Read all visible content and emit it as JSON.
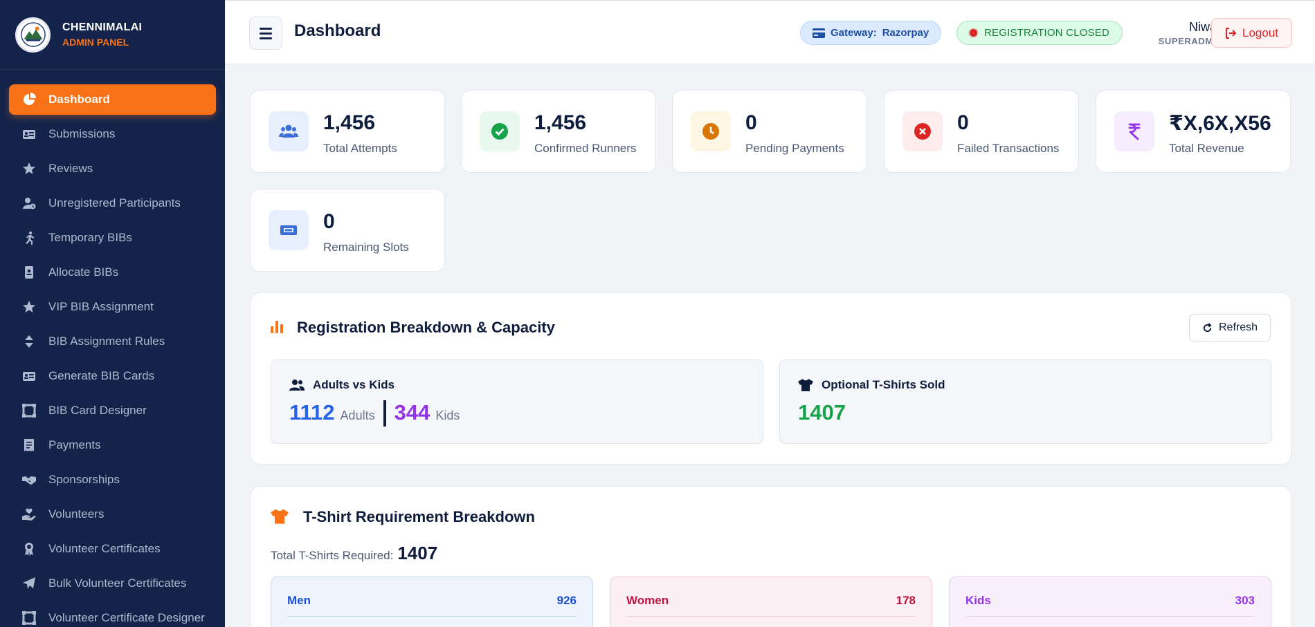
{
  "brand": {
    "title": "CHENNIMALAI",
    "subtitle": "ADMIN PANEL"
  },
  "sidebar": {
    "items": [
      {
        "label": "Dashboard",
        "icon": "pie-chart-icon",
        "active": true
      },
      {
        "label": "Submissions",
        "icon": "id-card-icon"
      },
      {
        "label": "Reviews",
        "icon": "star-icon"
      },
      {
        "label": "Unregistered Participants",
        "icon": "user-clock-icon"
      },
      {
        "label": "Temporary BIBs",
        "icon": "running-icon"
      },
      {
        "label": "Allocate BIBs",
        "icon": "id-badge-icon"
      },
      {
        "label": "VIP BIB Assignment",
        "icon": "star-icon"
      },
      {
        "label": "BIB Assignment Rules",
        "icon": "sort-icon"
      },
      {
        "label": "Generate BIB Cards",
        "icon": "id-card-icon"
      },
      {
        "label": "BIB Card Designer",
        "icon": "crop-icon"
      },
      {
        "label": "Payments",
        "icon": "receipt-icon"
      },
      {
        "label": "Sponsorships",
        "icon": "handshake-icon"
      },
      {
        "label": "Volunteers",
        "icon": "hand-holding-heart-icon"
      },
      {
        "label": "Volunteer Certificates",
        "icon": "award-icon"
      },
      {
        "label": "Bulk Volunteer Certificates",
        "icon": "paper-plane-icon"
      },
      {
        "label": "Volunteer Certificate Designer",
        "icon": "crop-icon"
      }
    ]
  },
  "header": {
    "title": "Dashboard",
    "gateway_label": "Gateway:",
    "gateway_value": "Razorpay",
    "registration_status": "REGISTRATION CLOSED",
    "user_name": "Niwas",
    "user_role": "SUPERADMIN",
    "logout_label": "Logout"
  },
  "stats": [
    {
      "value": "1,456",
      "label": "Total Attempts",
      "icon": "users-icon",
      "color": "#3b6fd8",
      "bg": "#e8effc"
    },
    {
      "value": "1,456",
      "label": "Confirmed Runners",
      "icon": "check-circle-icon",
      "color": "#16a34a",
      "bg": "#e8f8ee"
    },
    {
      "value": "0",
      "label": "Pending Payments",
      "icon": "clock-icon",
      "color": "#d97706",
      "bg": "#fdf6e3"
    },
    {
      "value": "0",
      "label": "Failed Transactions",
      "icon": "times-circle-icon",
      "color": "#dc2626",
      "bg": "#fdecec"
    },
    {
      "value": "₹X,6X,X56",
      "label": "Total Revenue",
      "icon": "rupee-icon",
      "color": "#9333ea",
      "bg": "#f5ecfd"
    },
    {
      "value": "0",
      "label": "Remaining Slots",
      "icon": "ticket-icon",
      "color": "#3b6fd8",
      "bg": "#e8effc"
    }
  ],
  "breakdown": {
    "title": "Registration Breakdown & Capacity",
    "refresh_label": "Refresh",
    "adults_kids_title": "Adults vs Kids",
    "adults_value": "1112",
    "adults_label": "Adults",
    "kids_value": "344",
    "kids_label": "Kids",
    "tshirts_title": "Optional T-Shirts Sold",
    "tshirts_value": "1407"
  },
  "tshirt": {
    "title": "T-Shirt Requirement Breakdown",
    "total_label": "Total T-Shirts Required:",
    "total_value": "1407",
    "groups": [
      {
        "name": "Men",
        "count": "926",
        "color": "#1d4ed8",
        "bg": "#eef4fd",
        "border": "#c5d8f4"
      },
      {
        "name": "Women",
        "count": "178",
        "color": "#be123c",
        "bg": "#fdf0f4",
        "border": "#f5c8d6"
      },
      {
        "name": "Kids",
        "count": "303",
        "color": "#9333ea",
        "bg": "#f8f0fd",
        "border": "#e2cdf5"
      }
    ]
  },
  "colors": {
    "sidebar_bg": "#14234a",
    "accent": "#f97316"
  }
}
